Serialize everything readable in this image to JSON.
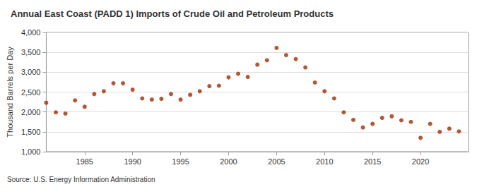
{
  "chart_data": {
    "type": "scatter",
    "title": "Annual East Coast (PADD 1) Imports of Crude Oil and Petroleum Products",
    "ylabel": "Thousand Barrels per Day",
    "annotations": [
      "Source: U.S. Energy Information Administration"
    ],
    "x": [
      1981,
      1982,
      1983,
      1984,
      1985,
      1986,
      1987,
      1988,
      1989,
      1990,
      1991,
      1992,
      1993,
      1994,
      1995,
      1996,
      1997,
      1998,
      1999,
      2000,
      2001,
      2002,
      2003,
      2004,
      2005,
      2006,
      2007,
      2008,
      2009,
      2010,
      2011,
      2012,
      2013,
      2014,
      2015,
      2016,
      2017,
      2018,
      2019,
      2020,
      2021,
      2022,
      2023,
      2024
    ],
    "values": [
      2230,
      1990,
      1960,
      2290,
      2130,
      2450,
      2520,
      2720,
      2720,
      2560,
      2340,
      2310,
      2330,
      2450,
      2310,
      2430,
      2520,
      2650,
      2660,
      2870,
      2960,
      2880,
      3190,
      3300,
      3610,
      3430,
      3330,
      3120,
      2740,
      2520,
      2340,
      1990,
      1800,
      1610,
      1700,
      1850,
      1890,
      1790,
      1750,
      1350,
      1700,
      1500,
      1580,
      1510
    ],
    "color": "#9c3000",
    "marker": "circle",
    "xlim": [
      1981,
      2025
    ],
    "xticks": [
      1985,
      1990,
      1995,
      2000,
      2005,
      2010,
      2015,
      2020
    ],
    "ylim": [
      1000,
      4000
    ],
    "yticks": [
      {
        "value": 1000,
        "label": "1,000"
      },
      {
        "value": 1500,
        "label": "1,500"
      },
      {
        "value": 2000,
        "label": "2,000"
      },
      {
        "value": 2500,
        "label": "2,500"
      },
      {
        "value": 3000,
        "label": "3,000"
      },
      {
        "value": 3500,
        "label": "3,500"
      },
      {
        "value": 4000,
        "label": "4,000"
      }
    ],
    "grid": true
  }
}
